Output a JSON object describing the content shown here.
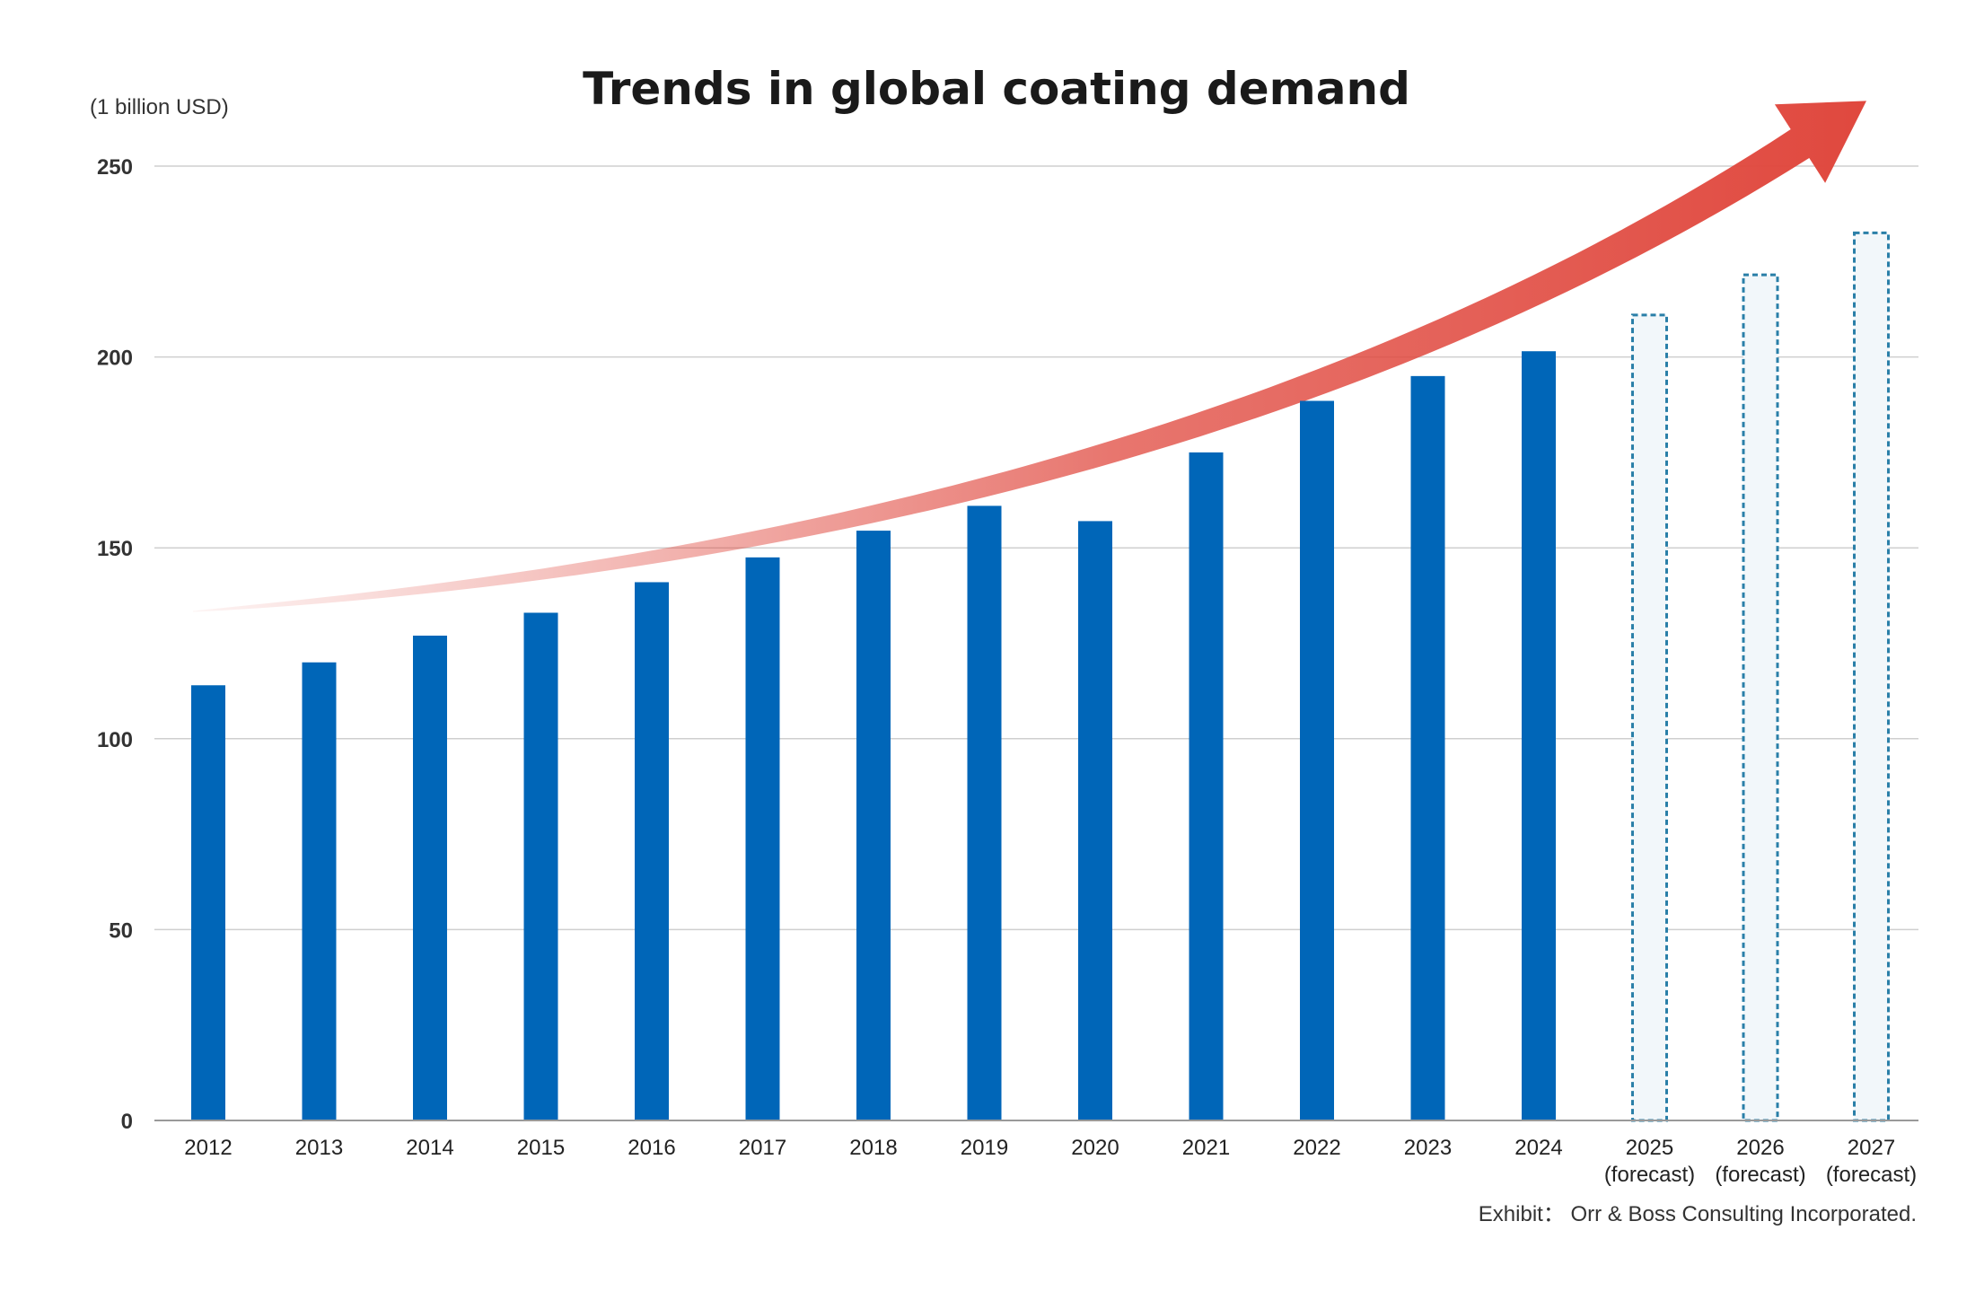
{
  "chart_data": {
    "type": "bar",
    "title": "Trends in global coating demand",
    "unit_label": "(1 billion USD)",
    "source": "Exhibit： Orr & Boss Consulting Incorporated.",
    "ylim": [
      0,
      250
    ],
    "yticks": [
      0,
      50,
      100,
      150,
      200,
      250
    ],
    "grid": true,
    "categories": [
      {
        "label": "2012",
        "sub": ""
      },
      {
        "label": "2013",
        "sub": ""
      },
      {
        "label": "2014",
        "sub": ""
      },
      {
        "label": "2015",
        "sub": ""
      },
      {
        "label": "2016",
        "sub": ""
      },
      {
        "label": "2017",
        "sub": ""
      },
      {
        "label": "2018",
        "sub": ""
      },
      {
        "label": "2019",
        "sub": ""
      },
      {
        "label": "2020",
        "sub": ""
      },
      {
        "label": "2021",
        "sub": ""
      },
      {
        "label": "2022",
        "sub": ""
      },
      {
        "label": "2023",
        "sub": ""
      },
      {
        "label": "2024",
        "sub": ""
      },
      {
        "label": "2025",
        "sub": "(forecast)"
      },
      {
        "label": "2026",
        "sub": "(forecast)"
      },
      {
        "label": "2027",
        "sub": "(forecast)"
      }
    ],
    "values": [
      114,
      120,
      127,
      133,
      141,
      147.5,
      154.5,
      161,
      157,
      175,
      188.5,
      195,
      201.5,
      211,
      221.5,
      232.5
    ],
    "forecast": [
      false,
      false,
      false,
      false,
      false,
      false,
      false,
      false,
      false,
      false,
      false,
      false,
      false,
      true,
      true,
      true
    ],
    "colors": {
      "actual": "#0066b8",
      "forecast_fill": "#f2f7fa",
      "forecast_stroke": "#2a7fa8",
      "trend_arrow": "#e0483e"
    }
  }
}
